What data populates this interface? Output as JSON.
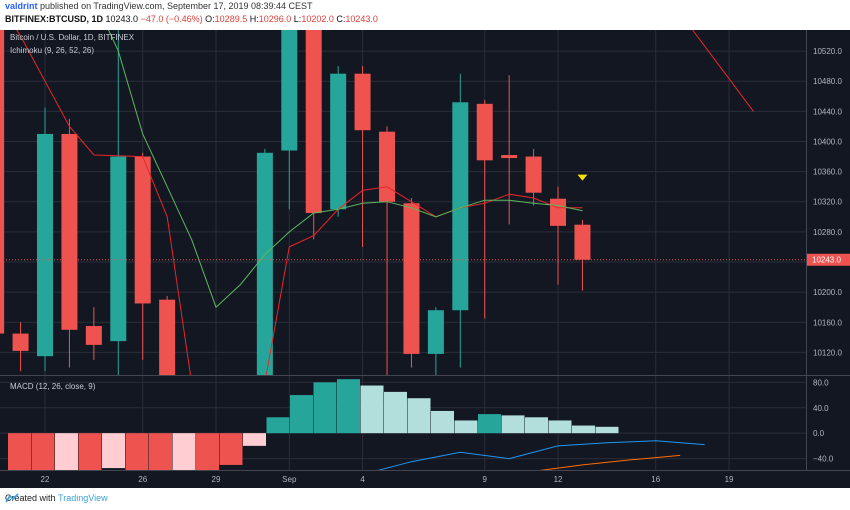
{
  "header": {
    "author": "valdrint",
    "published_text": "published on TradingView.com, September 17, 2019 08:39:44 CEST",
    "symbol": "BITFINEX:BTCUSD, 1D",
    "last": "10243.0",
    "change": "−47.0 (−0.46%)",
    "o_label": "O:",
    "o_value": "10289.5",
    "h_label": "H:",
    "h_value": "10296.0",
    "l_label": "L:",
    "l_value": "10202.0",
    "c_label": "C:",
    "c_value": "10243.0"
  },
  "legends": {
    "symbol": "Bitcoin / U.S. Dollar, 1D, BITFINEX",
    "ichimoku": "Ichimoku (9, 26, 52, 26)",
    "macd": "MACD (12, 26, close, 9)"
  },
  "footer": {
    "created_with": "Created with",
    "brand": "TradingView"
  },
  "colors": {
    "background": "#131722",
    "up": "#26a69a",
    "down": "#ef5350",
    "price_line": "#ef5350",
    "marker": "#f5e50b",
    "tenkan": "#e8262a",
    "kijun": "#5cb85c",
    "hist_strong_up": "#26a69a",
    "hist_weak_up": "#b2dfdb",
    "hist_strong_down": "#ef5350",
    "hist_weak_down": "#ffcdd2",
    "macd_line": "#2196f3",
    "signal_line": "#ff6d00"
  },
  "chart_data": {
    "type": "candlestick",
    "x_ticks": [
      {
        "label": "22",
        "day": 22
      },
      {
        "label": "26",
        "day": 26
      },
      {
        "label": "29",
        "day": 29
      },
      {
        "label": "Sep",
        "day": 32
      },
      {
        "label": "4",
        "day": 35
      },
      {
        "label": "9",
        "day": 40
      },
      {
        "label": "12",
        "day": 43
      },
      {
        "label": "16",
        "day": 47
      },
      {
        "label": "19",
        "day": 50
      }
    ],
    "price_axis": {
      "ticks": [
        10120,
        10160,
        10200,
        10240,
        10280,
        10320,
        10360,
        10400,
        10440,
        10480,
        10520
      ],
      "tick_labels": [
        "10120.0",
        "10160.0",
        "10200.0",
        "10240.0",
        "10280.0",
        "10320.0",
        "10360.0",
        "10400.0",
        "10440.0",
        "10480.0",
        "10520.0"
      ],
      "last_price": 10243.0,
      "last_price_label": "10243.0",
      "range": [
        10090,
        10548
      ]
    },
    "candles": [
      {
        "day": 20,
        "o": 10780,
        "h": 10790,
        "l": 10100,
        "c": 10145
      },
      {
        "day": 21,
        "o": 10145,
        "h": 10160,
        "l": 10095,
        "c": 10122
      },
      {
        "day": 22,
        "o": 10115,
        "h": 10445,
        "l": 10095,
        "c": 10410
      },
      {
        "day": 23,
        "o": 10410,
        "h": 10430,
        "l": 10100,
        "c": 10150
      },
      {
        "day": 24,
        "o": 10155,
        "h": 10180,
        "l": 10110,
        "c": 10130
      },
      {
        "day": 25,
        "o": 10135,
        "h": 10570,
        "l": 10080,
        "c": 10380
      },
      {
        "day": 26,
        "o": 10380,
        "h": 10385,
        "l": 10110,
        "c": 10185
      },
      {
        "day": 27,
        "o": 10190,
        "h": 10195,
        "l": 10050,
        "c": 10060
      },
      {
        "day": 31,
        "o": 10070,
        "h": 10390,
        "l": 10060,
        "c": 10385
      },
      {
        "day": 32,
        "o": 10388,
        "h": 10700,
        "l": 10310,
        "c": 10650
      },
      {
        "day": 33,
        "o": 10680,
        "h": 10700,
        "l": 10270,
        "c": 10305
      },
      {
        "day": 34,
        "o": 10310,
        "h": 10500,
        "l": 10300,
        "c": 10490
      },
      {
        "day": 35,
        "o": 10490,
        "h": 10500,
        "l": 10260,
        "c": 10415
      },
      {
        "day": 36,
        "o": 10413,
        "h": 10420,
        "l": 10080,
        "c": 10320
      },
      {
        "day": 37,
        "o": 10318,
        "h": 10325,
        "l": 10100,
        "c": 10118
      },
      {
        "day": 38,
        "o": 10118,
        "h": 10180,
        "l": 10090,
        "c": 10176
      },
      {
        "day": 39,
        "o": 10176,
        "h": 10490,
        "l": 10100,
        "c": 10452
      },
      {
        "day": 40,
        "o": 10450,
        "h": 10455,
        "l": 10165,
        "c": 10375
      },
      {
        "day": 41,
        "o": 10382,
        "h": 10488,
        "l": 10290,
        "c": 10378
      },
      {
        "day": 42,
        "o": 10380,
        "h": 10390,
        "l": 10315,
        "c": 10332
      },
      {
        "day": 43,
        "o": 10324,
        "h": 10340,
        "l": 10210,
        "c": 10288
      },
      {
        "day": 44,
        "o": 10289.5,
        "h": 10296,
        "l": 10202,
        "c": 10243
      }
    ],
    "ichimoku": {
      "tenkan": [
        [
          17,
          10780
        ],
        [
          19,
          10640
        ],
        [
          21,
          10540
        ],
        [
          23,
          10420
        ],
        [
          24,
          10382
        ],
        [
          26,
          10380
        ],
        [
          27,
          10300
        ],
        [
          28,
          10080
        ],
        [
          31,
          10080
        ],
        [
          32,
          10260
        ],
        [
          33,
          10275
        ],
        [
          34,
          10310
        ],
        [
          35,
          10335
        ],
        [
          36,
          10340
        ],
        [
          37,
          10320
        ],
        [
          38,
          10300
        ],
        [
          39,
          10312
        ],
        [
          40,
          10318
        ],
        [
          41,
          10330
        ],
        [
          42,
          10325
        ],
        [
          43,
          10312
        ],
        [
          44,
          10312
        ]
      ],
      "kijun": [
        [
          22,
          10690
        ],
        [
          24,
          10590
        ],
        [
          25,
          10520
        ],
        [
          26,
          10410
        ],
        [
          27,
          10340
        ],
        [
          28,
          10270
        ],
        [
          29,
          10180
        ],
        [
          30,
          10210
        ],
        [
          31,
          10250
        ],
        [
          32,
          10280
        ],
        [
          33,
          10305
        ],
        [
          34,
          10310
        ],
        [
          35,
          10318
        ],
        [
          36,
          10320
        ],
        [
          37,
          10312
        ],
        [
          38,
          10300
        ],
        [
          39,
          10312
        ],
        [
          40,
          10322
        ],
        [
          41,
          10322
        ],
        [
          42,
          10318
        ],
        [
          43,
          10315
        ],
        [
          44,
          10308
        ]
      ],
      "cloud_edge": [
        [
          48,
          10570
        ],
        [
          51,
          10440
        ]
      ]
    },
    "marker": {
      "day": 44,
      "price": 10352
    },
    "macd": {
      "range": [
        -58,
        90
      ],
      "ticks": [
        80,
        40,
        0,
        -40
      ],
      "tick_labels": [
        "80.0",
        "40.0",
        "0.0",
        "−40.0"
      ],
      "histogram": [
        -78,
        -75,
        -70,
        -68,
        -55,
        -58,
        -63,
        -62,
        -58,
        -50,
        -20,
        25,
        60,
        80,
        85,
        75,
        65,
        55,
        35,
        20,
        30,
        28,
        25,
        20,
        12,
        10
      ],
      "histogram_colors": [
        "strong_down",
        "strong_down",
        "weak_down",
        "strong_down",
        "weak_down",
        "strong_down",
        "strong_down",
        "weak_down",
        "strong_down",
        "strong_down",
        "weak_down",
        "strong_up",
        "strong_up",
        "strong_up",
        "strong_up",
        "weak_up",
        "weak_up",
        "weak_up",
        "weak_up",
        "weak_up",
        "strong_up",
        "weak_up",
        "weak_up",
        "weak_up",
        "weak_up",
        "weak_up"
      ],
      "macd_line": [
        [
          35,
          -65
        ],
        [
          37,
          -45
        ],
        [
          39,
          -30
        ],
        [
          41,
          -40
        ],
        [
          43,
          -20
        ],
        [
          45,
          -15
        ],
        [
          47,
          -12
        ],
        [
          49,
          -18
        ]
      ],
      "signal_line": [
        [
          40,
          -80
        ],
        [
          42,
          -60
        ],
        [
          44,
          -50
        ],
        [
          46,
          -42
        ],
        [
          48,
          -35
        ]
      ]
    }
  }
}
